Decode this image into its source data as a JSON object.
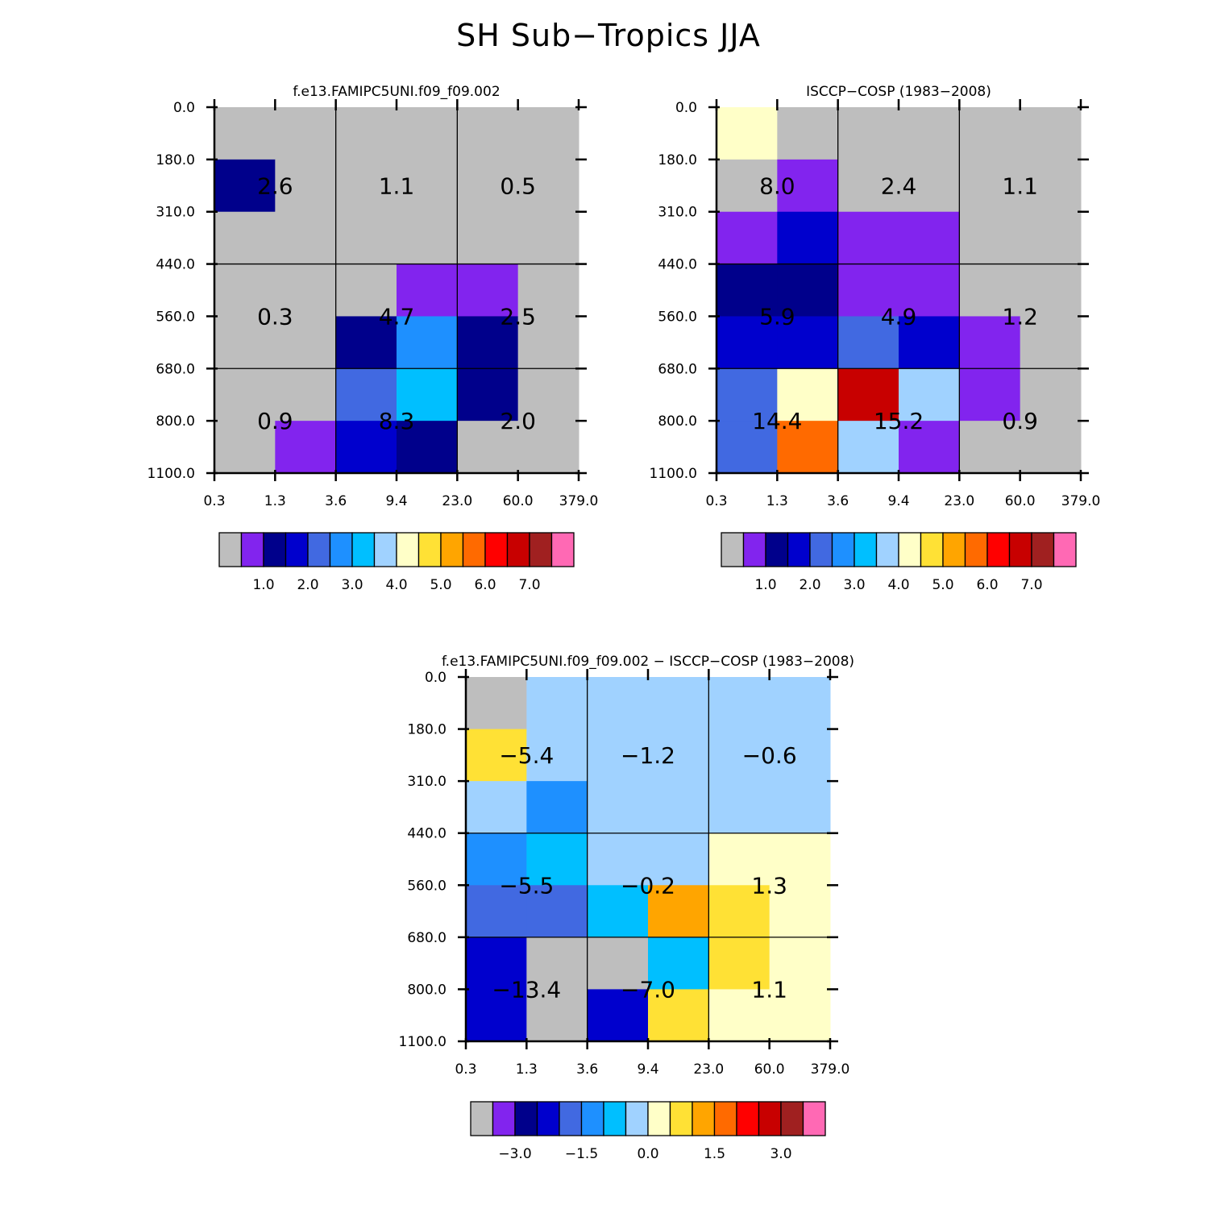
{
  "title": "SH Sub−Tropics JJA",
  "palette": {
    "gray": "#bebebe",
    "c1": "#8224ee",
    "c2": "#00008b",
    "c3": "#0000cd",
    "c4": "#4169e1",
    "c5": "#1e90ff",
    "c6": "#00bfff",
    "c7": "#a0d2ff",
    "c8": "#ffffc8",
    "c9": "#ffe135",
    "c10": "#ffa500",
    "c11": "#ff6a00",
    "c12": "#ff0000",
    "c13": "#c80000",
    "c14": "#a02020",
    "c15": "#ff69b4"
  },
  "chart_data": [
    {
      "type": "heatmap",
      "title": "f.e13.FAMIPC5UNI.f09_f09.002",
      "xlabel": "",
      "ylabel": "",
      "x_ticks": [
        "0.3",
        "1.3",
        "3.6",
        "9.4",
        "23.0",
        "60.0",
        "379.0"
      ],
      "y_ticks": [
        "0.0",
        "180.0",
        "310.0",
        "440.0",
        "560.0",
        "680.0",
        "800.0",
        "1100.0"
      ],
      "cells": [
        [
          "gray",
          "gray",
          "gray",
          "gray",
          "gray",
          "gray"
        ],
        [
          "c2",
          "gray",
          "gray",
          "gray",
          "gray",
          "gray"
        ],
        [
          "gray",
          "gray",
          "gray",
          "gray",
          "gray",
          "gray"
        ],
        [
          "gray",
          "gray",
          "gray",
          "c1",
          "c1",
          "gray"
        ],
        [
          "gray",
          "gray",
          "c2",
          "c5",
          "c2",
          "gray"
        ],
        [
          "gray",
          "gray",
          "c4",
          "c6",
          "c2",
          "gray"
        ],
        [
          "gray",
          "c1",
          "c3",
          "c2",
          "gray",
          "gray"
        ]
      ],
      "sums": [
        [
          "2.6",
          "1.1",
          "0.5"
        ],
        [
          "0.3",
          "4.7",
          "2.5"
        ],
        [
          "0.9",
          "8.3",
          "2.0"
        ]
      ],
      "colorbar": {
        "colors": [
          "gray",
          "c1",
          "c2",
          "c3",
          "c4",
          "c5",
          "c6",
          "c7",
          "c8",
          "c9",
          "c10",
          "c11",
          "c12",
          "c13",
          "c14",
          "c15"
        ],
        "labels": [
          "1.0",
          "2.0",
          "3.0",
          "4.0",
          "5.0",
          "6.0",
          "7.0"
        ]
      }
    },
    {
      "type": "heatmap",
      "title": "ISCCP−COSP (1983−2008)",
      "xlabel": "",
      "ylabel": "",
      "x_ticks": [
        "0.3",
        "1.3",
        "3.6",
        "9.4",
        "23.0",
        "60.0",
        "379.0"
      ],
      "y_ticks": [
        "0.0",
        "180.0",
        "310.0",
        "440.0",
        "560.0",
        "680.0",
        "800.0",
        "1100.0"
      ],
      "cells": [
        [
          "c8",
          "gray",
          "gray",
          "gray",
          "gray",
          "gray"
        ],
        [
          "gray",
          "c1",
          "gray",
          "gray",
          "gray",
          "gray"
        ],
        [
          "c1",
          "c3",
          "c1",
          "c1",
          "gray",
          "gray"
        ],
        [
          "c2",
          "c2",
          "c1",
          "c1",
          "gray",
          "gray"
        ],
        [
          "c3",
          "c3",
          "c4",
          "c3",
          "c1",
          "gray"
        ],
        [
          "c4",
          "c8",
          "c13",
          "c7",
          "c1",
          "gray"
        ],
        [
          "c4",
          "c11",
          "c7",
          "c1",
          "gray",
          "gray"
        ]
      ],
      "sums": [
        [
          "8.0",
          "2.4",
          "1.1"
        ],
        [
          "5.9",
          "4.9",
          "1.2"
        ],
        [
          "14.4",
          "15.2",
          "0.9"
        ]
      ],
      "colorbar": {
        "colors": [
          "gray",
          "c1",
          "c2",
          "c3",
          "c4",
          "c5",
          "c6",
          "c7",
          "c8",
          "c9",
          "c10",
          "c11",
          "c12",
          "c13",
          "c14",
          "c15"
        ],
        "labels": [
          "1.0",
          "2.0",
          "3.0",
          "4.0",
          "5.0",
          "6.0",
          "7.0"
        ]
      }
    },
    {
      "type": "heatmap",
      "title": "f.e13.FAMIPC5UNI.f09_f09.002 − ISCCP−COSP (1983−2008)",
      "xlabel": "",
      "ylabel": "",
      "x_ticks": [
        "0.3",
        "1.3",
        "3.6",
        "9.4",
        "23.0",
        "60.0",
        "379.0"
      ],
      "y_ticks": [
        "0.0",
        "180.0",
        "310.0",
        "440.0",
        "560.0",
        "680.0",
        "800.0",
        "1100.0"
      ],
      "cells": [
        [
          "gray",
          "c7",
          "c7",
          "c7",
          "c7",
          "c7"
        ],
        [
          "c9",
          "c7",
          "c7",
          "c7",
          "c7",
          "c7"
        ],
        [
          "c7",
          "c5",
          "c7",
          "c7",
          "c7",
          "c7"
        ],
        [
          "c5",
          "c6",
          "c7",
          "c7",
          "c8",
          "c8"
        ],
        [
          "c4",
          "c4",
          "c6",
          "c10",
          "c9",
          "c8"
        ],
        [
          "c3",
          "gray",
          "gray",
          "c6",
          "c9",
          "c8"
        ],
        [
          "c3",
          "gray",
          "c3",
          "c9",
          "c8",
          "c8"
        ]
      ],
      "sums": [
        [
          "−5.4",
          "−1.2",
          "−0.6"
        ],
        [
          "−5.5",
          "−0.2",
          "1.3"
        ],
        [
          "−13.4",
          "−7.0",
          "1.1"
        ]
      ],
      "colorbar": {
        "colors": [
          "gray",
          "c1",
          "c2",
          "c3",
          "c4",
          "c5",
          "c6",
          "c7",
          "c8",
          "c9",
          "c10",
          "c11",
          "c12",
          "c13",
          "c14",
          "c15"
        ],
        "labels": [
          "−3.0",
          "−1.5",
          "0.0",
          "1.5",
          "3.0"
        ]
      }
    }
  ]
}
